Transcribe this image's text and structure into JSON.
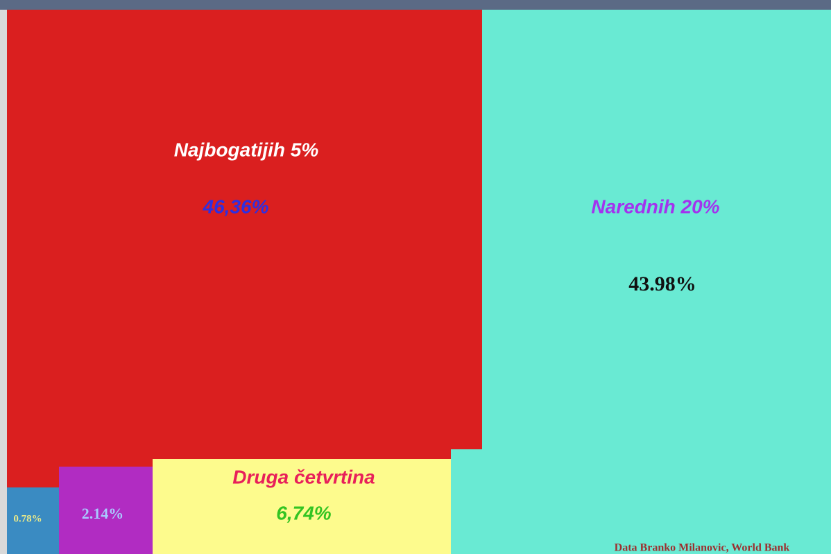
{
  "chart_data": {
    "type": "treemap",
    "categories": [
      "Najbogatijih 5%",
      "Narednih 20%",
      "Druga četvrtina",
      null,
      null
    ],
    "values": [
      46.36,
      43.98,
      6.74,
      2.14,
      0.78
    ],
    "value_labels": [
      "46,36%",
      "43.98%",
      "6,74%",
      "2.14%",
      "0.78%"
    ],
    "colors": [
      "#da1f1f",
      "#69ead3",
      "#fdfb8d",
      "#b12cc2",
      "#3a8bc2"
    ],
    "source": "Data Branko Milanovic, World Bank"
  }
}
